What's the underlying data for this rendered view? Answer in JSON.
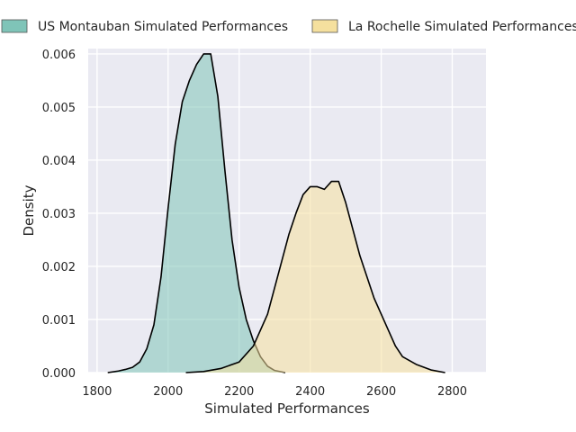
{
  "chart_data": {
    "type": "area",
    "title": "",
    "xlabel": "Simulated Performances",
    "ylabel": "Density",
    "xlim": [
      1775,
      2895
    ],
    "ylim": [
      0,
      0.0061
    ],
    "xticks": [
      1800,
      2000,
      2200,
      2400,
      2600,
      2800
    ],
    "yticks": [
      0.0,
      0.001,
      0.002,
      0.003,
      0.004,
      0.005,
      0.006
    ],
    "ytick_format": 3,
    "grid": true,
    "legend_position": "top",
    "series": [
      {
        "name": "US Montauban Simulated Performances",
        "color": "#7fc4b8",
        "points": [
          [
            1830,
            0.0
          ],
          [
            1860,
            3e-05
          ],
          [
            1880,
            6e-05
          ],
          [
            1900,
            0.0001
          ],
          [
            1920,
            0.0002
          ],
          [
            1940,
            0.00045
          ],
          [
            1960,
            0.0009
          ],
          [
            1980,
            0.0018
          ],
          [
            2000,
            0.0031
          ],
          [
            2020,
            0.0043
          ],
          [
            2040,
            0.0051
          ],
          [
            2060,
            0.0055
          ],
          [
            2080,
            0.0058
          ],
          [
            2100,
            0.006
          ],
          [
            2120,
            0.006
          ],
          [
            2140,
            0.0052
          ],
          [
            2160,
            0.0038
          ],
          [
            2180,
            0.0025
          ],
          [
            2200,
            0.0016
          ],
          [
            2220,
            0.001
          ],
          [
            2240,
            0.0006
          ],
          [
            2260,
            0.0003
          ],
          [
            2280,
            0.00012
          ],
          [
            2300,
            4e-05
          ],
          [
            2330,
            0.0
          ]
        ]
      },
      {
        "name": "La Rochelle Simulated Performances",
        "color": "#f5e09e",
        "points": [
          [
            2050,
            0.0
          ],
          [
            2100,
            2e-05
          ],
          [
            2150,
            8e-05
          ],
          [
            2200,
            0.0002
          ],
          [
            2240,
            0.0005
          ],
          [
            2280,
            0.0011
          ],
          [
            2300,
            0.0016
          ],
          [
            2320,
            0.0021
          ],
          [
            2340,
            0.0026
          ],
          [
            2360,
            0.003
          ],
          [
            2380,
            0.00335
          ],
          [
            2400,
            0.0035
          ],
          [
            2420,
            0.0035
          ],
          [
            2440,
            0.00345
          ],
          [
            2460,
            0.0036
          ],
          [
            2480,
            0.0036
          ],
          [
            2500,
            0.0032
          ],
          [
            2520,
            0.0027
          ],
          [
            2540,
            0.0022
          ],
          [
            2560,
            0.0018
          ],
          [
            2580,
            0.0014
          ],
          [
            2600,
            0.0011
          ],
          [
            2620,
            0.0008
          ],
          [
            2640,
            0.0005
          ],
          [
            2660,
            0.0003
          ],
          [
            2700,
            0.00015
          ],
          [
            2740,
            5e-05
          ],
          [
            2780,
            0.0
          ]
        ]
      }
    ]
  }
}
